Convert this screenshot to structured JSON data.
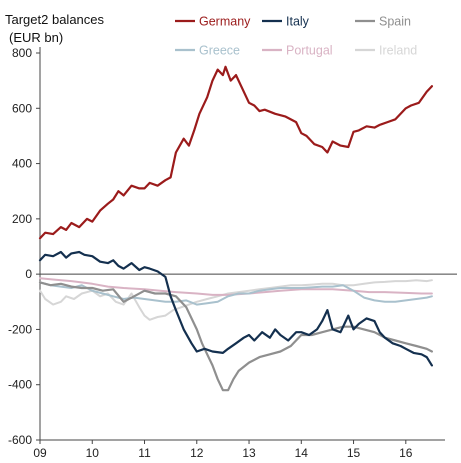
{
  "chart_data": {
    "type": "line",
    "ylabel": [
      "Target2 balances",
      "(EUR bn)"
    ],
    "ylim": [
      -600,
      800
    ],
    "yticks": [
      800,
      600,
      400,
      200,
      0,
      -200,
      -400,
      -600
    ],
    "xlim": [
      2009.0,
      2016.75
    ],
    "xticks": [
      {
        "value": 2009,
        "label": "09"
      },
      {
        "value": 2010,
        "label": "10"
      },
      {
        "value": 2011,
        "label": "11"
      },
      {
        "value": 2012,
        "label": "12"
      },
      {
        "value": 2013,
        "label": "13"
      },
      {
        "value": 2014,
        "label": "14"
      },
      {
        "value": 2015,
        "label": "15"
      },
      {
        "value": 2016,
        "label": "16"
      }
    ],
    "grid": false,
    "legend_placement": "top",
    "series": [
      {
        "name": "Germany",
        "color": "#9b1b1b",
        "width": 2.2,
        "legend_row": 0,
        "x": [
          2009.0,
          2009.1,
          2009.25,
          2009.4,
          2009.5,
          2009.6,
          2009.75,
          2009.9,
          2010.0,
          2010.15,
          2010.3,
          2010.4,
          2010.5,
          2010.6,
          2010.75,
          2010.9,
          2011.0,
          2011.1,
          2011.25,
          2011.4,
          2011.5,
          2011.6,
          2011.75,
          2011.85,
          2011.95,
          2012.05,
          2012.2,
          2012.3,
          2012.4,
          2012.5,
          2012.55,
          2012.65,
          2012.75,
          2012.85,
          2013.0,
          2013.1,
          2013.2,
          2013.3,
          2013.5,
          2013.7,
          2013.9,
          2014.0,
          2014.1,
          2014.25,
          2014.4,
          2014.5,
          2014.6,
          2014.75,
          2014.9,
          2015.0,
          2015.1,
          2015.25,
          2015.4,
          2015.5,
          2015.65,
          2015.8,
          2015.9,
          2016.0,
          2016.1,
          2016.25,
          2016.4,
          2016.5
        ],
        "y": [
          130,
          150,
          145,
          170,
          160,
          185,
          170,
          200,
          190,
          230,
          255,
          270,
          300,
          285,
          320,
          310,
          310,
          330,
          320,
          340,
          350,
          440,
          490,
          465,
          520,
          580,
          640,
          700,
          740,
          720,
          750,
          700,
          720,
          680,
          620,
          610,
          590,
          595,
          580,
          570,
          550,
          510,
          500,
          470,
          460,
          440,
          480,
          465,
          460,
          515,
          520,
          535,
          530,
          540,
          550,
          560,
          580,
          600,
          610,
          620,
          660,
          680
        ]
      },
      {
        "name": "Italy",
        "color": "#14304f",
        "width": 2.2,
        "legend_row": 0,
        "x": [
          2009.0,
          2009.1,
          2009.25,
          2009.4,
          2009.5,
          2009.6,
          2009.75,
          2009.85,
          2010.0,
          2010.15,
          2010.3,
          2010.4,
          2010.5,
          2010.6,
          2010.75,
          2010.9,
          2011.0,
          2011.1,
          2011.25,
          2011.4,
          2011.5,
          2011.6,
          2011.75,
          2011.9,
          2012.0,
          2012.15,
          2012.3,
          2012.5,
          2012.6,
          2012.75,
          2012.9,
          2013.0,
          2013.1,
          2013.25,
          2013.4,
          2013.5,
          2013.6,
          2013.75,
          2013.9,
          2014.0,
          2014.15,
          2014.3,
          2014.4,
          2014.5,
          2014.6,
          2014.75,
          2014.9,
          2015.0,
          2015.1,
          2015.25,
          2015.4,
          2015.5,
          2015.6,
          2015.75,
          2015.9,
          2016.0,
          2016.15,
          2016.3,
          2016.4,
          2016.5
        ],
        "y": [
          50,
          70,
          65,
          80,
          60,
          75,
          80,
          70,
          65,
          45,
          40,
          50,
          30,
          20,
          40,
          15,
          25,
          20,
          10,
          -10,
          -80,
          -130,
          -200,
          -250,
          -280,
          -270,
          -280,
          -285,
          -270,
          -250,
          -230,
          -220,
          -240,
          -210,
          -230,
          -200,
          -220,
          -240,
          -210,
          -210,
          -220,
          -200,
          -170,
          -130,
          -200,
          -210,
          -150,
          -200,
          -180,
          -160,
          -170,
          -210,
          -230,
          -250,
          -260,
          -270,
          -285,
          -290,
          -300,
          -330
        ]
      },
      {
        "name": "Spain",
        "color": "#8f8f8f",
        "width": 2.2,
        "legend_row": 0,
        "x": [
          2009.0,
          2009.2,
          2009.4,
          2009.6,
          2009.8,
          2010.0,
          2010.2,
          2010.4,
          2010.6,
          2010.8,
          2011.0,
          2011.2,
          2011.4,
          2011.6,
          2011.8,
          2012.0,
          2012.1,
          2012.2,
          2012.3,
          2012.4,
          2012.5,
          2012.6,
          2012.7,
          2012.8,
          2013.0,
          2013.2,
          2013.4,
          2013.6,
          2013.8,
          2014.0,
          2014.2,
          2014.4,
          2014.6,
          2014.8,
          2015.0,
          2015.2,
          2015.4,
          2015.6,
          2015.8,
          2016.0,
          2016.2,
          2016.4,
          2016.5
        ],
        "y": [
          -30,
          -40,
          -35,
          -45,
          -50,
          -50,
          -60,
          -55,
          -100,
          -80,
          -60,
          -70,
          -70,
          -80,
          -120,
          -200,
          -250,
          -290,
          -330,
          -380,
          -420,
          -420,
          -380,
          -350,
          -320,
          -300,
          -290,
          -280,
          -260,
          -220,
          -220,
          -210,
          -200,
          -190,
          -190,
          -200,
          -210,
          -230,
          -240,
          -250,
          -260,
          -270,
          -280
        ]
      },
      {
        "name": "Greece",
        "color": "#a9c1cd",
        "width": 2.0,
        "legend_row": 1,
        "x": [
          2009.0,
          2009.2,
          2009.4,
          2009.6,
          2009.8,
          2010.0,
          2010.2,
          2010.4,
          2010.6,
          2010.8,
          2011.0,
          2011.2,
          2011.4,
          2011.6,
          2011.8,
          2012.0,
          2012.2,
          2012.4,
          2012.6,
          2012.8,
          2013.0,
          2013.2,
          2013.4,
          2013.6,
          2013.8,
          2014.0,
          2014.2,
          2014.4,
          2014.6,
          2014.8,
          2015.0,
          2015.2,
          2015.4,
          2015.6,
          2015.8,
          2016.0,
          2016.2,
          2016.4,
          2016.5
        ],
        "y": [
          -30,
          -40,
          -45,
          -50,
          -40,
          -60,
          -70,
          -80,
          -90,
          -85,
          -90,
          -95,
          -100,
          -100,
          -95,
          -110,
          -105,
          -100,
          -80,
          -70,
          -70,
          -60,
          -55,
          -50,
          -50,
          -50,
          -48,
          -45,
          -45,
          -40,
          -60,
          -85,
          -95,
          -100,
          -100,
          -95,
          -90,
          -85,
          -80
        ]
      },
      {
        "name": "Portugal",
        "color": "#d9b3c4",
        "width": 2.0,
        "legend_row": 1,
        "x": [
          2009.0,
          2009.3,
          2009.6,
          2010.0,
          2010.3,
          2010.6,
          2011.0,
          2011.3,
          2011.6,
          2012.0,
          2012.3,
          2012.6,
          2013.0,
          2013.3,
          2013.6,
          2014.0,
          2014.3,
          2014.6,
          2015.0,
          2015.3,
          2015.6,
          2016.0,
          2016.3,
          2016.5
        ],
        "y": [
          -15,
          -20,
          -25,
          -35,
          -45,
          -50,
          -55,
          -60,
          -65,
          -70,
          -75,
          -75,
          -70,
          -65,
          -60,
          -55,
          -55,
          -55,
          -60,
          -65,
          -65,
          -68,
          -70,
          -70
        ]
      },
      {
        "name": "Ireland",
        "color": "#d6d6d6",
        "width": 2.0,
        "legend_row": 1,
        "x": [
          2009.0,
          2009.1,
          2009.25,
          2009.4,
          2009.5,
          2009.65,
          2009.8,
          2010.0,
          2010.15,
          2010.3,
          2010.45,
          2010.6,
          2010.75,
          2010.9,
          2011.0,
          2011.1,
          2011.25,
          2011.4,
          2011.55,
          2011.7,
          2011.85,
          2012.0,
          2012.2,
          2012.4,
          2012.6,
          2012.8,
          2013.0,
          2013.2,
          2013.4,
          2013.6,
          2013.8,
          2014.0,
          2014.2,
          2014.4,
          2014.6,
          2014.8,
          2015.0,
          2015.2,
          2015.4,
          2015.6,
          2015.8,
          2016.0,
          2016.2,
          2016.4,
          2016.5
        ],
        "y": [
          -60,
          -90,
          -110,
          -100,
          -80,
          -90,
          -70,
          -60,
          -80,
          -70,
          -100,
          -110,
          -70,
          -120,
          -150,
          -165,
          -155,
          -150,
          -130,
          -120,
          -110,
          -100,
          -90,
          -80,
          -70,
          -65,
          -60,
          -55,
          -50,
          -45,
          -40,
          -40,
          -38,
          -35,
          -35,
          -40,
          -40,
          -35,
          -30,
          -28,
          -25,
          -25,
          -22,
          -25,
          -22
        ]
      }
    ]
  }
}
